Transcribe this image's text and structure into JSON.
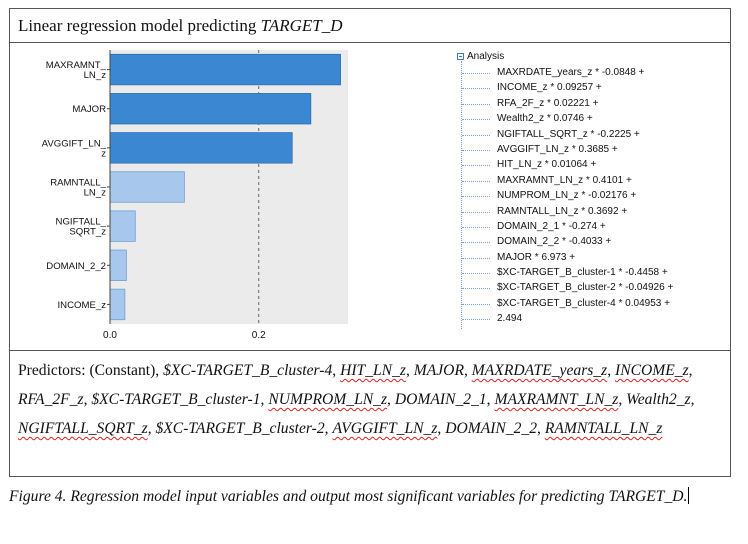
{
  "title": {
    "prefix": "Linear regression model predicting ",
    "target": "TARGET_D"
  },
  "chart_data": {
    "type": "bar",
    "orientation": "horizontal",
    "categories": [
      "MAXRAMNT_\nLN_z",
      "MAJOR",
      "AVGGIFT_LN_\nz",
      "RAMNTALL_\nLN_z",
      "NGIFTALL_\nSQRT_z",
      "DOMAIN_2_2",
      "INCOME_z"
    ],
    "values": [
      0.31,
      0.27,
      0.245,
      0.1,
      0.034,
      0.022,
      0.02
    ],
    "shading": [
      "dark",
      "dark",
      "dark",
      "light",
      "light",
      "light",
      "light"
    ],
    "colors": {
      "dark": "#3c87d2",
      "light": "#a7c8ec"
    },
    "xlim": [
      0.0,
      0.32
    ],
    "xticks": [
      "0.0",
      "0.2"
    ],
    "reference_line_at": 0.2,
    "xlabel": "",
    "ylabel": "",
    "grid": false
  },
  "tree": {
    "root": "Analysis",
    "items": [
      "MAXRDATE_years_z * -0.0848 +",
      "INCOME_z * 0.09257 +",
      "RFA_2F_z * 0.02221 +",
      "Wealth2_z * 0.0746 +",
      "NGIFTALL_SQRT_z * -0.2225 +",
      "AVGGIFT_LN_z * 0.3685 +",
      "HIT_LN_z * 0.01064 +",
      "MAXRAMNT_LN_z * 0.4101 +",
      "NUMPROM_LN_z * -0.02176 +",
      "RAMNTALL_LN_z * 0.3692 +",
      "DOMAIN_2_1 * -0.274 +",
      "DOMAIN_2_2 * -0.4033 +",
      "MAJOR * 6.973 +",
      "$XC-TARGET_B_cluster-1 * -0.4458 +",
      "$XC-TARGET_B_cluster-2 * -0.04926 +",
      "$XC-TARGET_B_cluster-4 * 0.04953 +",
      "2.494"
    ]
  },
  "predictors": {
    "label": "Predictors: (Constant), ",
    "vars": [
      "$XC-TARGET_B_cluster-4",
      "HIT_LN_z",
      "MAJOR",
      "MAXRDATE_years_z",
      "INCOME_z",
      "RFA_2F_z",
      "$XC-TARGET_B_cluster-1",
      "NUMPROM_LN_z",
      "DOMAIN_2_1",
      "MAXRAMNT_LN_z",
      "Wealth2_z",
      "NGIFTALL_SQRT_z",
      "$XC-TARGET_B_cluster-2",
      "AVGGIFT_LN_z",
      "DOMAIN_2_2",
      "RAMNTALL_LN_z"
    ]
  },
  "caption": "Figure 4. Regression model input variables and output most significant variables for predicting TARGET_D."
}
